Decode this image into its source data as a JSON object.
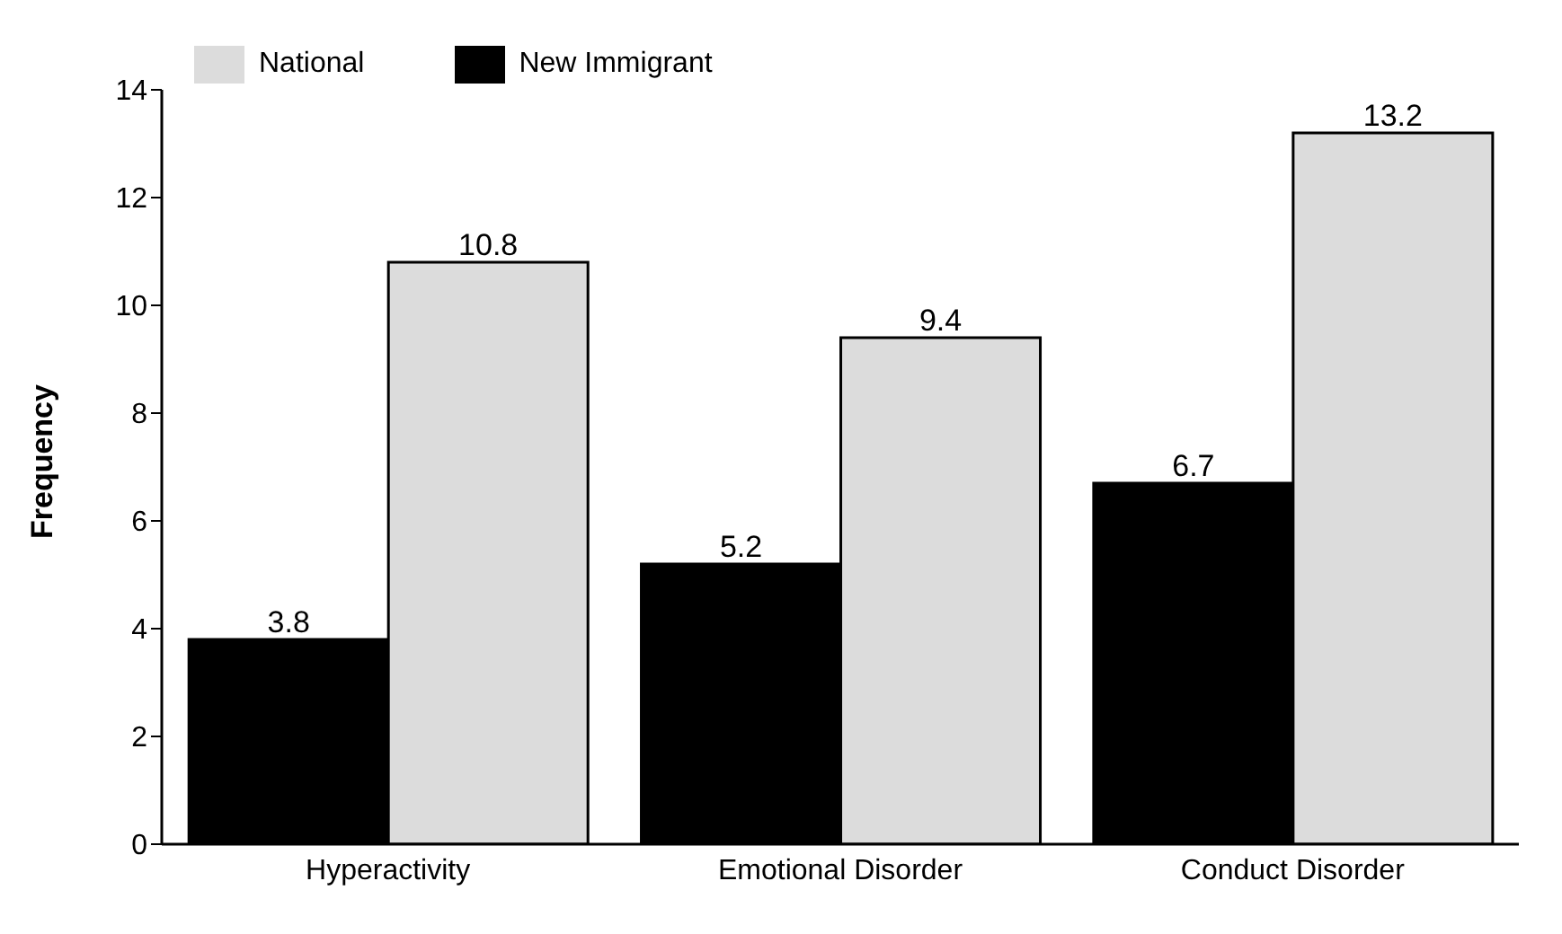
{
  "chart_data": {
    "type": "bar",
    "ylabel": "Frequency",
    "categories": [
      "Hyperactivity",
      "Emotional Disorder",
      "Conduct Disorder"
    ],
    "series": [
      {
        "name": "New Immigrant",
        "color": "#000000",
        "values": [
          3.8,
          5.2,
          6.7
        ]
      },
      {
        "name": "National",
        "color": "#dcdcdc",
        "values": [
          10.8,
          9.4,
          13.2
        ]
      }
    ],
    "ylim": [
      0,
      14
    ],
    "yticks": [
      0,
      2,
      4,
      6,
      8,
      10,
      12,
      14
    ],
    "data_labels": true,
    "legend": "top left",
    "grid": false
  }
}
